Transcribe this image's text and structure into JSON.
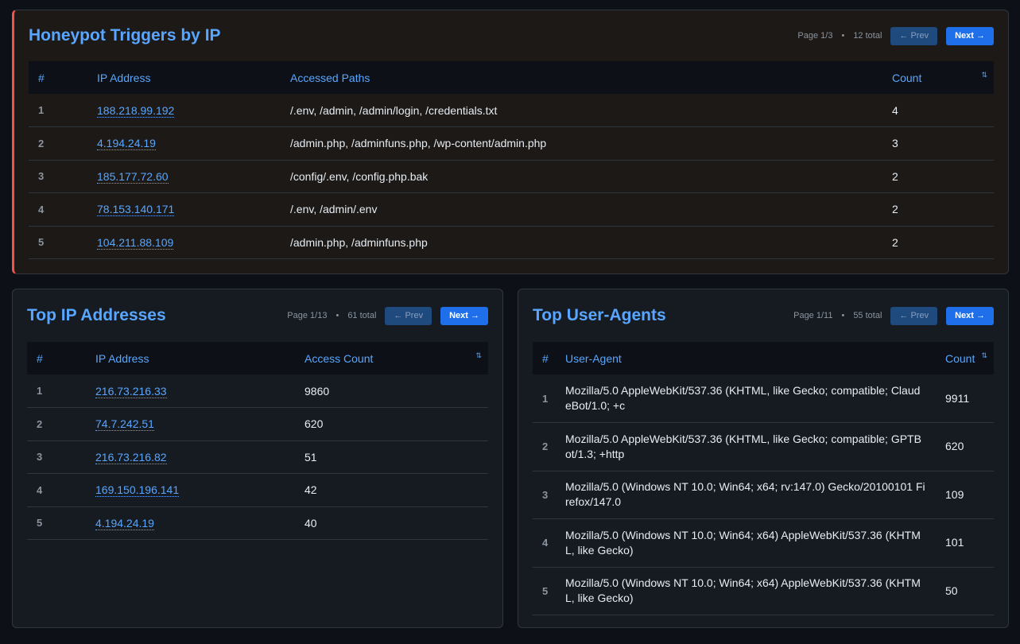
{
  "honeypot": {
    "title": "Honeypot Triggers by IP",
    "page": "Page 1/3",
    "total": "12 total",
    "prev": "← Prev",
    "next": "Next →",
    "headers": [
      "#",
      "IP Address",
      "Accessed Paths",
      "Count"
    ],
    "rows": [
      [
        "1",
        "188.218.99.192",
        "/.env, /admin, /admin/login, /credentials.txt",
        "4"
      ],
      [
        "2",
        "4.194.24.19",
        "/admin.php, /adminfuns.php, /wp-content/admin.php",
        "3"
      ],
      [
        "3",
        "185.177.72.60",
        "/config/.env, /config.php.bak",
        "2"
      ],
      [
        "4",
        "78.153.140.171",
        "/.env, /admin/.env",
        "2"
      ],
      [
        "5",
        "104.211.88.109",
        "/admin.php, /adminfuns.php",
        "2"
      ]
    ]
  },
  "top_ips": {
    "title": "Top IP Addresses",
    "page": "Page 1/13",
    "total": "61 total",
    "prev": "← Prev",
    "next": "Next →",
    "headers": [
      "#",
      "IP Address",
      "Access Count"
    ],
    "rows": [
      [
        "1",
        "216.73.216.33",
        "9860"
      ],
      [
        "2",
        "74.7.242.51",
        "620"
      ],
      [
        "3",
        "216.73.216.82",
        "51"
      ],
      [
        "4",
        "169.150.196.141",
        "42"
      ],
      [
        "5",
        "4.194.24.19",
        "40"
      ]
    ]
  },
  "top_uas": {
    "title": "Top User-Agents",
    "page": "Page 1/11",
    "total": "55 total",
    "prev": "← Prev",
    "next": "Next →",
    "headers": [
      "#",
      "User-Agent",
      "Count"
    ],
    "rows": [
      [
        "1",
        "Mozilla/5.0 AppleWebKit/537.36 (KHTML, like Gecko; compatible; ClaudeBot/1.0; +c",
        "9911"
      ],
      [
        "2",
        "Mozilla/5.0 AppleWebKit/537.36 (KHTML, like Gecko; compatible; GPTBot/1.3; +http",
        "620"
      ],
      [
        "3",
        "Mozilla/5.0 (Windows NT 10.0; Win64; x64; rv:147.0) Gecko/20100101 Firefox/147.0",
        "109"
      ],
      [
        "4",
        "Mozilla/5.0 (Windows NT 10.0; Win64; x64) AppleWebKit/537.36 (KHTML, like Gecko)",
        "101"
      ],
      [
        "5",
        "Mozilla/5.0 (Windows NT 10.0; Win64; x64) AppleWebKit/537.36 (KHTML, like Gecko)",
        "50"
      ]
    ]
  },
  "sort_icon": "sort-arrows-icon"
}
